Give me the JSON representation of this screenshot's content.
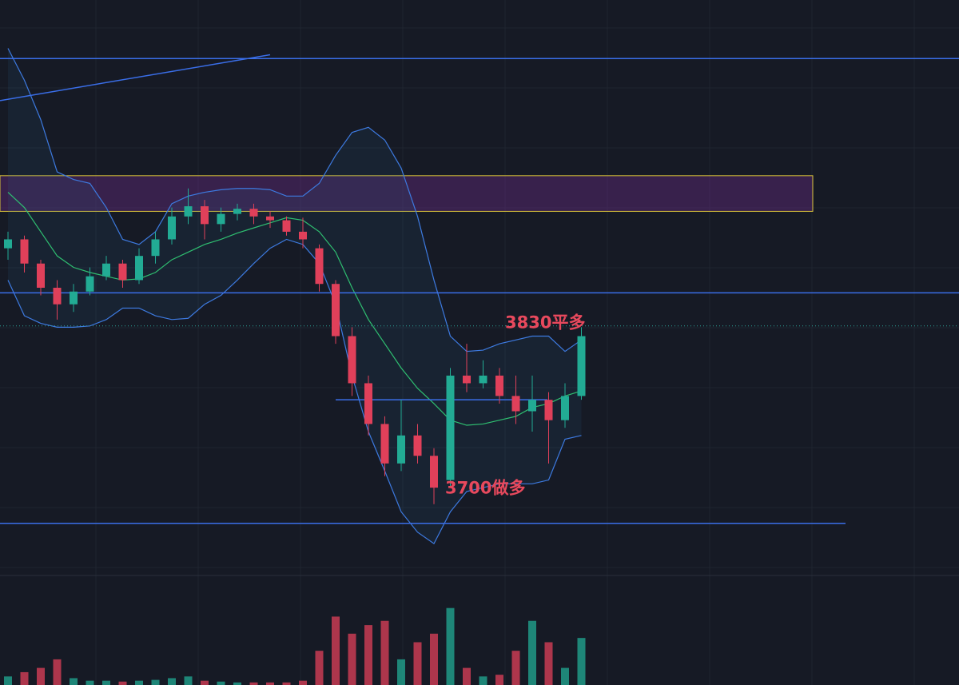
{
  "chart_data": {
    "type": "candlestick",
    "ylim": [
      3632,
      4084
    ],
    "candles": {
      "open": [
        3889,
        3896,
        3877,
        3858,
        3845,
        3855,
        3867,
        3877,
        3864,
        3883,
        3896,
        3914,
        3922,
        3908,
        3916,
        3920,
        3914,
        3911,
        3902,
        3889,
        3861,
        3820,
        3783,
        3751,
        3720,
        3742,
        3726,
        3707,
        3789,
        3783,
        3789,
        3773,
        3761,
        3770,
        3754,
        3773
      ],
      "high": [
        3902,
        3899,
        3880,
        3864,
        3861,
        3874,
        3883,
        3880,
        3889,
        3902,
        3921,
        3936,
        3927,
        3921,
        3924,
        3924,
        3918,
        3914,
        3913,
        3892,
        3864,
        3827,
        3789,
        3757,
        3770,
        3751,
        3732,
        3795,
        3814,
        3801,
        3795,
        3789,
        3789,
        3776,
        3783,
        3827
      ],
      "low": [
        3880,
        3870,
        3852,
        3833,
        3839,
        3852,
        3864,
        3858,
        3861,
        3877,
        3892,
        3908,
        3896,
        3902,
        3911,
        3908,
        3905,
        3899,
        3889,
        3855,
        3814,
        3773,
        3742,
        3710,
        3714,
        3720,
        3688,
        3701,
        3776,
        3779,
        3767,
        3751,
        3745,
        3720,
        3748,
        3770
      ],
      "close": [
        3896,
        3877,
        3858,
        3845,
        3855,
        3867,
        3877,
        3864,
        3883,
        3896,
        3914,
        3922,
        3908,
        3916,
        3920,
        3914,
        3911,
        3902,
        3896,
        3861,
        3820,
        3783,
        3751,
        3720,
        3742,
        3726,
        3701,
        3789,
        3783,
        3789,
        3773,
        3761,
        3770,
        3754,
        3773,
        3820
      ]
    },
    "bands": {
      "upper": [
        4046,
        4021,
        3990,
        3949,
        3943,
        3940,
        3921,
        3896,
        3892,
        3902,
        3924,
        3930,
        3933,
        3935,
        3936,
        3936,
        3935,
        3930,
        3930,
        3940,
        3962,
        3980,
        3984,
        3974,
        3952,
        3914,
        3864,
        3820,
        3808,
        3809,
        3814,
        3817,
        3820,
        3820,
        3808,
        3817
      ],
      "middle": [
        3933,
        3921,
        3902,
        3883,
        3874,
        3870,
        3867,
        3864,
        3865,
        3870,
        3880,
        3886,
        3892,
        3896,
        3901,
        3905,
        3909,
        3913,
        3911,
        3902,
        3886,
        3858,
        3833,
        3814,
        3795,
        3779,
        3767,
        3754,
        3750,
        3751,
        3754,
        3757,
        3764,
        3767,
        3773,
        3777
      ],
      "lower": [
        3864,
        3836,
        3830,
        3827,
        3827,
        3828,
        3833,
        3842,
        3842,
        3836,
        3833,
        3834,
        3845,
        3852,
        3864,
        3877,
        3889,
        3896,
        3892,
        3877,
        3845,
        3789,
        3745,
        3714,
        3682,
        3666,
        3657,
        3682,
        3698,
        3701,
        3704,
        3704,
        3704,
        3707,
        3739,
        3742
      ]
    },
    "volume": [
      10,
      15,
      20,
      30,
      8,
      5,
      5,
      4,
      5,
      6,
      8,
      10,
      5,
      4,
      3,
      3,
      3,
      3,
      5,
      40,
      80,
      60,
      70,
      75,
      30,
      50,
      60,
      90,
      20,
      10,
      12,
      40,
      75,
      50,
      20,
      55
    ],
    "volume_lim": [
      0,
      100
    ],
    "up_color": "#22ab94",
    "down_color": "#e0405a",
    "band_color": "#3d7ae0",
    "middle_color": "#2fbf71",
    "levels": [
      4038,
      3854,
      3673,
      3770
    ],
    "price_line": 3828,
    "zone": [
      3918,
      3946
    ],
    "trendline": [
      4005,
      4041
    ],
    "annotations": [
      {
        "text": "3830平多",
        "value": 3830
      },
      {
        "text": "3700做多",
        "value": 3700
      }
    ]
  }
}
